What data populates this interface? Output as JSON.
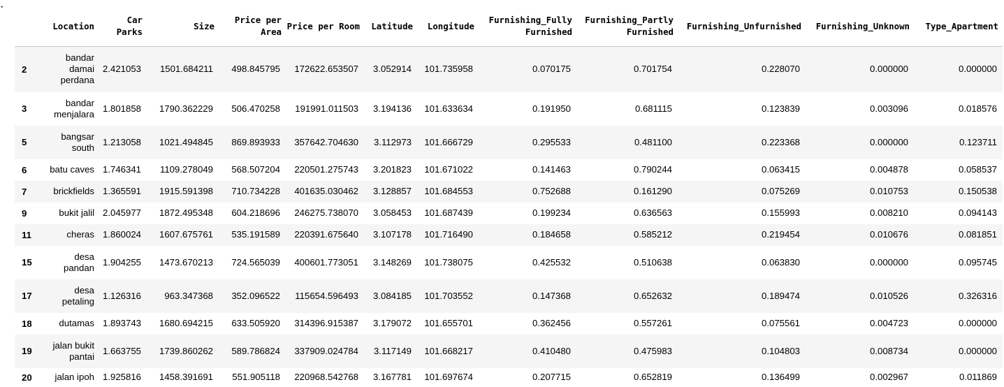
{
  "table": {
    "columns": [
      "Location",
      "Car Parks",
      "Size",
      "Price per Area",
      "Price per Room",
      "Latitude",
      "Longitude",
      "Furnishing_Fully Furnished",
      "Furnishing_Partly Furnished",
      "Furnishing_Unfurnished",
      "Furnishing_Unknown",
      "Type_Apartment"
    ],
    "rows": [
      {
        "index": "2",
        "cells": [
          "bandar damai perdana",
          "2.421053",
          "1501.684211",
          "498.845795",
          "172622.653507",
          "3.052914",
          "101.735958",
          "0.070175",
          "0.701754",
          "0.228070",
          "0.000000",
          "0.000000"
        ]
      },
      {
        "index": "3",
        "cells": [
          "bandar menjalara",
          "1.801858",
          "1790.362229",
          "506.470258",
          "191991.011503",
          "3.194136",
          "101.633634",
          "0.191950",
          "0.681115",
          "0.123839",
          "0.003096",
          "0.018576"
        ]
      },
      {
        "index": "5",
        "cells": [
          "bangsar south",
          "1.213058",
          "1021.494845",
          "869.893933",
          "357642.704630",
          "3.112973",
          "101.666729",
          "0.295533",
          "0.481100",
          "0.223368",
          "0.000000",
          "0.123711"
        ]
      },
      {
        "index": "6",
        "cells": [
          "batu caves",
          "1.746341",
          "1109.278049",
          "568.507204",
          "220501.275743",
          "3.201823",
          "101.671022",
          "0.141463",
          "0.790244",
          "0.063415",
          "0.004878",
          "0.058537"
        ]
      },
      {
        "index": "7",
        "cells": [
          "brickfields",
          "1.365591",
          "1915.591398",
          "710.734228",
          "401635.030462",
          "3.128857",
          "101.684553",
          "0.752688",
          "0.161290",
          "0.075269",
          "0.010753",
          "0.150538"
        ]
      },
      {
        "index": "9",
        "cells": [
          "bukit jalil",
          "2.045977",
          "1872.495348",
          "604.218696",
          "246275.738070",
          "3.058453",
          "101.687439",
          "0.199234",
          "0.636563",
          "0.155993",
          "0.008210",
          "0.094143"
        ]
      },
      {
        "index": "11",
        "cells": [
          "cheras",
          "1.860024",
          "1607.675761",
          "535.191589",
          "220391.675640",
          "3.107178",
          "101.716490",
          "0.184658",
          "0.585212",
          "0.219454",
          "0.010676",
          "0.081851"
        ]
      },
      {
        "index": "15",
        "cells": [
          "desa pandan",
          "1.904255",
          "1473.670213",
          "724.565039",
          "400601.773051",
          "3.148269",
          "101.738075",
          "0.425532",
          "0.510638",
          "0.063830",
          "0.000000",
          "0.095745"
        ]
      },
      {
        "index": "17",
        "cells": [
          "desa petaling",
          "1.126316",
          "963.347368",
          "352.096522",
          "115654.596493",
          "3.084185",
          "101.703552",
          "0.147368",
          "0.652632",
          "0.189474",
          "0.010526",
          "0.326316"
        ]
      },
      {
        "index": "18",
        "cells": [
          "dutamas",
          "1.893743",
          "1680.694215",
          "633.505920",
          "314396.915387",
          "3.179072",
          "101.655701",
          "0.362456",
          "0.557261",
          "0.075561",
          "0.004723",
          "0.000000"
        ]
      },
      {
        "index": "19",
        "cells": [
          "jalan bukit pantai",
          "1.663755",
          "1739.860262",
          "589.786824",
          "337909.024784",
          "3.117149",
          "101.668217",
          "0.410480",
          "0.475983",
          "0.104803",
          "0.008734",
          "0.000000"
        ]
      },
      {
        "index": "20",
        "cells": [
          "jalan ipoh",
          "1.925816",
          "1458.391691",
          "551.905118",
          "220968.542768",
          "3.167781",
          "101.697674",
          "0.207715",
          "0.652819",
          "0.136499",
          "0.002967",
          "0.011869"
        ]
      }
    ]
  }
}
